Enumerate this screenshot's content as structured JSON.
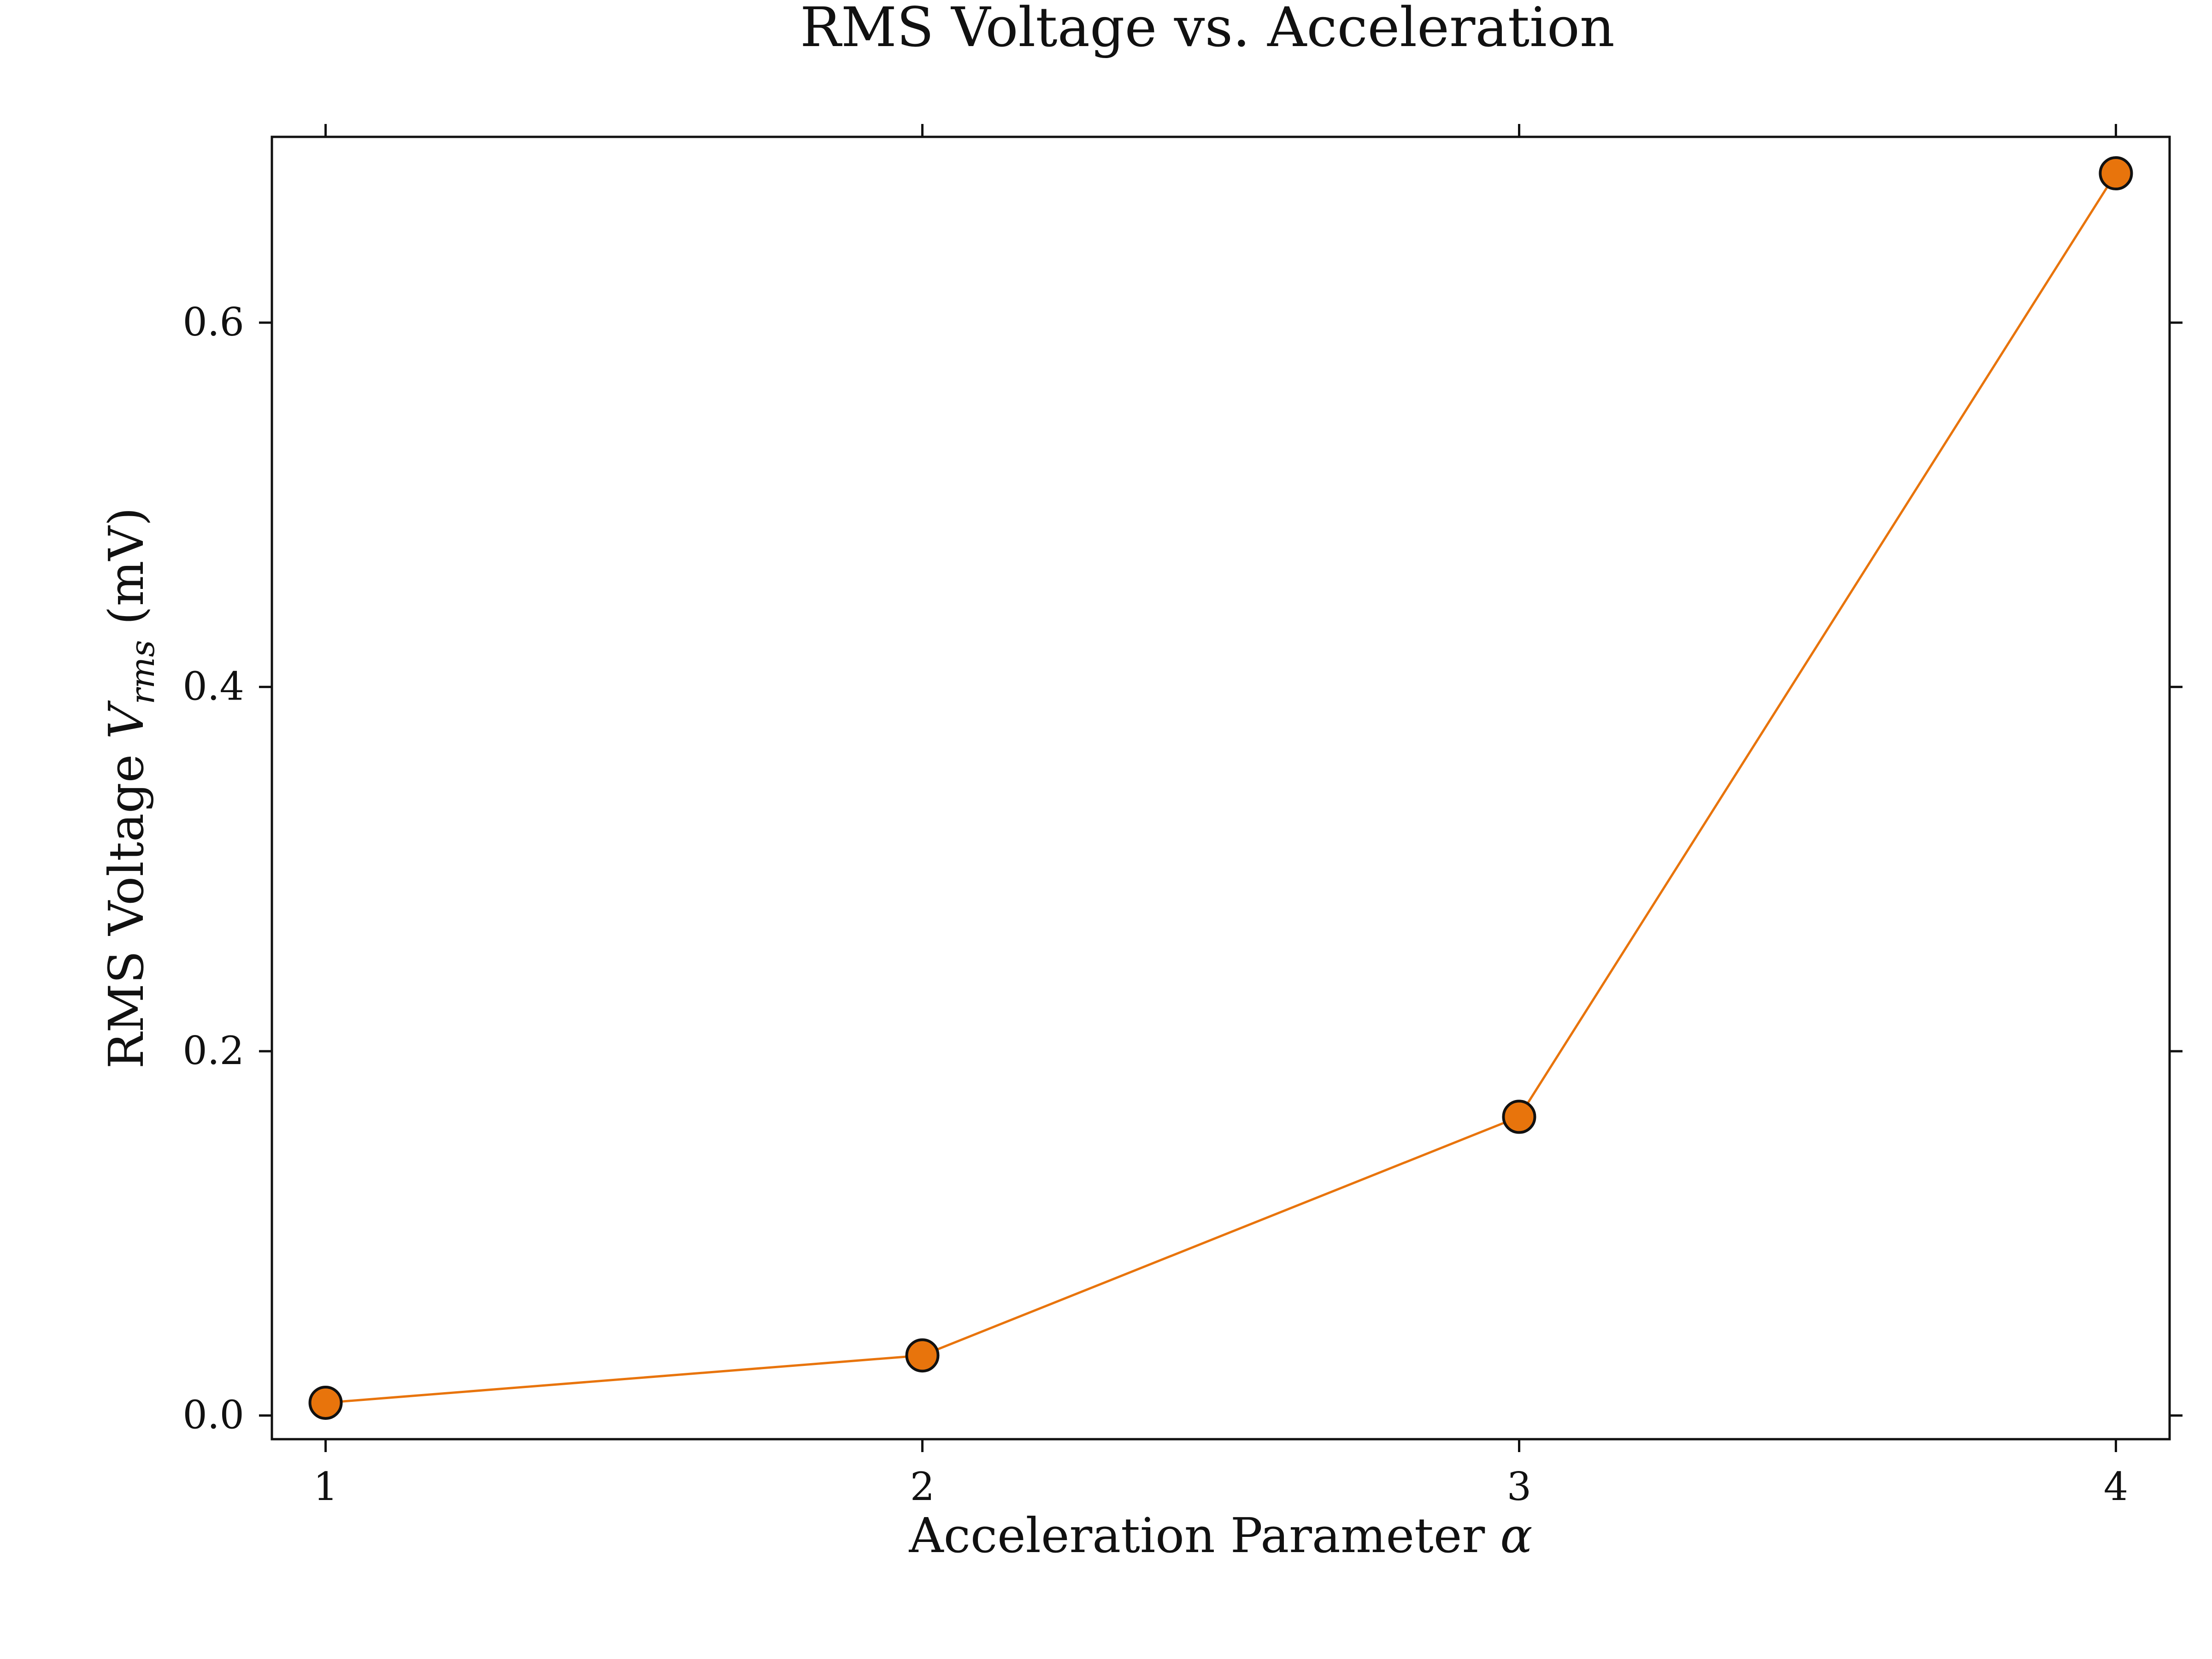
{
  "chart_data": {
    "type": "line",
    "title": "RMS Voltage vs. Acceleration",
    "xlabel_text": "Acceleration Parameter ",
    "xlabel_symbol": "α",
    "ylabel_prefix": "RMS Voltage ",
    "ylabel_symbol": "V",
    "ylabel_subscript": "rms",
    "ylabel_suffix": " (mV)",
    "x": [
      1,
      2,
      3,
      4
    ],
    "y": [
      0.007,
      0.033,
      0.164,
      0.682
    ],
    "xticks": [
      1,
      2,
      3,
      4
    ],
    "xtick_labels": [
      "1",
      "2",
      "3",
      "4"
    ],
    "yticks": [
      0.0,
      0.2,
      0.4,
      0.6
    ],
    "ytick_labels": [
      "0.0",
      "0.2",
      "0.4",
      "0.6"
    ],
    "xlim": [
      0.91,
      4.09
    ],
    "ylim": [
      -0.013,
      0.702
    ],
    "grid": false,
    "legend": "none",
    "line_color": "#e8740c",
    "marker_color": "#e8740c",
    "marker_edge_color": "#111111"
  }
}
